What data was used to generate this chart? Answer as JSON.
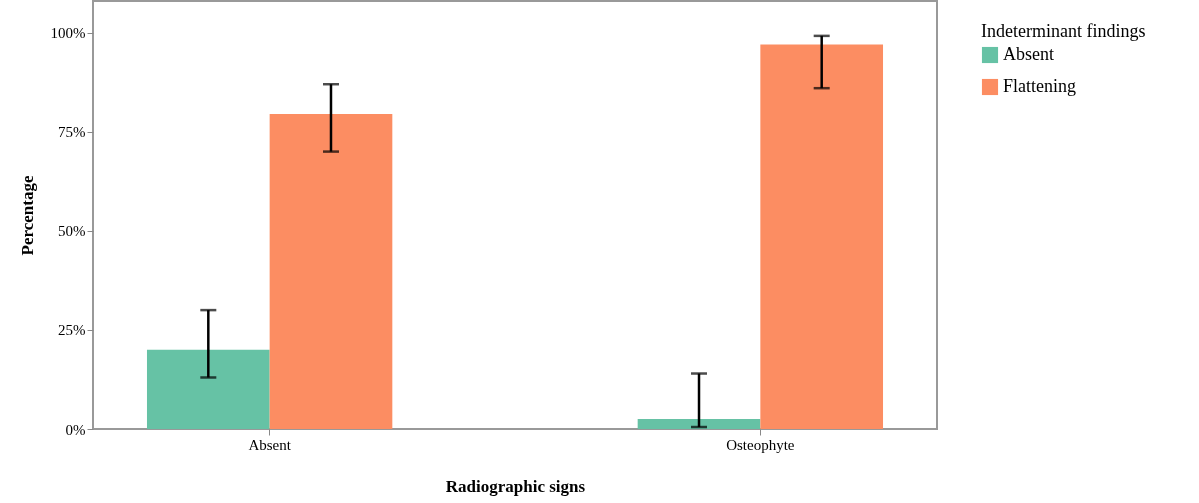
{
  "chart_data": {
    "type": "bar",
    "xlabel": "Radiographic signs",
    "ylabel": "Percentage",
    "legend_title": "Indeterminant findings",
    "categories": [
      "Absent",
      "Osteophyte"
    ],
    "series": [
      {
        "name": "Absent",
        "color": "#66c2a5",
        "values": [
          20,
          2.5
        ],
        "errors": [
          [
            13,
            30
          ],
          [
            0.5,
            14
          ]
        ]
      },
      {
        "name": "Flattening",
        "color": "#fc8d62",
        "values": [
          79.5,
          97
        ],
        "errors": [
          [
            70,
            87
          ],
          [
            86,
            99.2
          ]
        ]
      }
    ],
    "ylim": [
      0,
      108
    ],
    "yticks": [
      {
        "value": 0,
        "label": "0%"
      },
      {
        "value": 25,
        "label": "25%"
      },
      {
        "value": 50,
        "label": "50%"
      },
      {
        "value": 75,
        "label": "75%"
      },
      {
        "value": 100,
        "label": "100%"
      }
    ],
    "grid": false,
    "legend": "right"
  }
}
